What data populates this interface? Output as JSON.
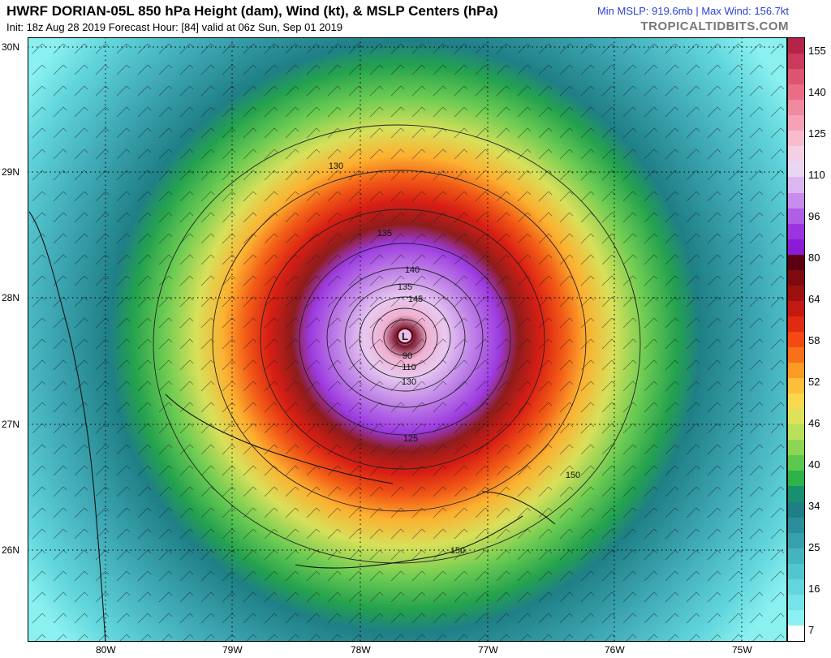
{
  "header": {
    "title": "HWRF DORIAN-05L 850 hPa Height (dam), Wind (kt), & MSLP Centers (hPa)",
    "subtitle": "Init: 18z Aug 28 2019   Forecast Hour: [84]   valid at 06z Sun, Sep 01 2019",
    "stats": "Min MSLP: 919.6mb | Max Wind: 156.7kt",
    "brand": "TROPICALTIDBITS.COM"
  },
  "map": {
    "lat_labels": [
      "30N",
      "29N",
      "28N",
      "27N",
      "26N"
    ],
    "lon_labels": [
      "80W",
      "79W",
      "78W",
      "77W",
      "76W",
      "75W"
    ],
    "contour_labels": [
      "130",
      "135",
      "140",
      "145",
      "135",
      "125",
      "130",
      "110",
      "90",
      "150",
      "150"
    ],
    "center_pressure_marker": "L"
  },
  "colorbar": {
    "labels": [
      "155",
      "140",
      "125",
      "110",
      "96",
      "80",
      "64",
      "58",
      "52",
      "46",
      "40",
      "34",
      "25",
      "16",
      "7"
    ],
    "colors": [
      "#b52448",
      "#c93a5c",
      "#dc5470",
      "#e86e86",
      "#f088a0",
      "#f5a2b8",
      "#f8bccc",
      "#f3d0e4",
      "#ead6f2",
      "#dcb6f0",
      "#c88cec",
      "#b15ee6",
      "#9a34e0",
      "#8a1cd8",
      "#5a0010",
      "#7e0a10",
      "#9e1010",
      "#c21a10",
      "#e02a12",
      "#f24a12",
      "#f87018",
      "#fb9a24",
      "#fdbf3a",
      "#f8d84e",
      "#dde25a",
      "#b8e05a",
      "#8cd654",
      "#5cc84e",
      "#2eb34a",
      "#1a8f6e",
      "#1f7f86",
      "#2a8f9a",
      "#36a0ac",
      "#44b4be",
      "#52c6cf",
      "#62d6dc",
      "#74e4e8",
      "#8af0f0",
      "#ffffff"
    ]
  }
}
